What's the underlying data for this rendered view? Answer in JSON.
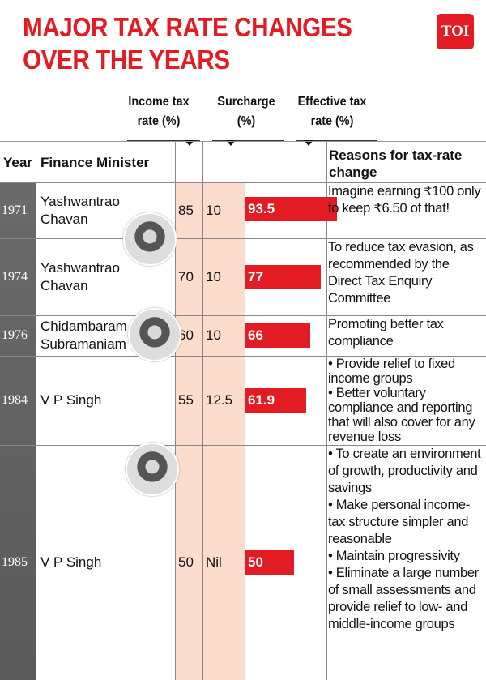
{
  "title": "MAJOR TAX RATE CHANGES OVER THE YEARS",
  "title_lines": [
    "MAJOR TAX RATE CHANGES",
    "OVER THE YEARS"
  ],
  "logo": "TOI",
  "colors": {
    "accent": "#e31b23",
    "peach": "#fcdccd",
    "year_bg": "#636363"
  },
  "chart_data": {
    "type": "table",
    "columns": [
      "Year",
      "Finance Minister",
      "Income tax rate (%)",
      "Surcharge (%)",
      "Effective tax rate (%)",
      "Reasons for tax-rate change"
    ],
    "group_headers": {
      "income": "Income tax rate (%)",
      "surcharge": "Surcharge (%)",
      "effective": "Effective tax rate (%)"
    },
    "headers": {
      "year": "Year",
      "minister": "Finance Minister",
      "reasons": "Reasons for tax-rate change"
    },
    "rows": [
      {
        "year": "1971",
        "minister": "Yashwantrao Chavan",
        "income": "85",
        "surcharge": "10",
        "effective": 93.5,
        "effective_label": "93.5",
        "reasons": [
          "Imagine earning ₹100 only to keep ₹6.50 of that!"
        ]
      },
      {
        "year": "1974",
        "minister": "Yashwantrao Chavan",
        "income": "70",
        "surcharge": "10",
        "effective": 77,
        "effective_label": "77",
        "reasons": [
          "To reduce tax evasion, as recommended by the Direct Tax Enquiry Committee"
        ]
      },
      {
        "year": "1976",
        "minister": "Chidambaram Subramaniam",
        "income": "60",
        "surcharge": "10",
        "effective": 66,
        "effective_label": "66",
        "reasons": [
          "Promoting better tax compliance"
        ]
      },
      {
        "year": "1984",
        "minister": "V P Singh",
        "income": "55",
        "surcharge": "12.5",
        "effective": 61.9,
        "effective_label": "61.9",
        "reasons": [
          "• Provide relief to fixed income groups",
          "• Better voluntary compliance and reporting that will also cover for any revenue loss"
        ]
      },
      {
        "year": "1985",
        "minister": "V P Singh",
        "income": "50",
        "surcharge": "Nil",
        "effective": 50,
        "effective_label": "50",
        "reasons": [
          "• To create an environment of growth, productivity and savings",
          "• Make personal income-tax structure simpler and reasonable",
          "• Maintain progressivity",
          "• Eliminate a large number of small assessments and provide relief to low- and middle-income groups"
        ]
      }
    ]
  }
}
